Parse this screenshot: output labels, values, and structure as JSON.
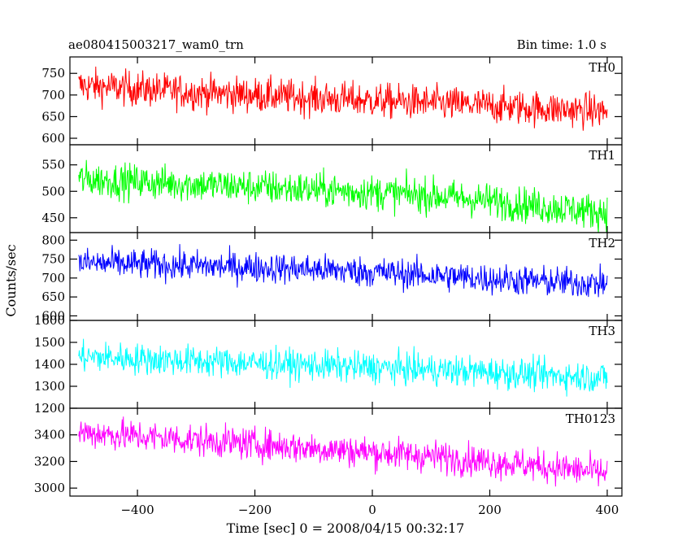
{
  "header": {
    "title": "ae080415003217_wam0_trn",
    "bin_time": "Bin time: 1.0 s"
  },
  "axes": {
    "xlabel": "Time [sec] 0 = 2008/04/15 00:32:17",
    "ylabel": "Counts/sec",
    "xlim": [
      -515,
      425
    ],
    "xticks": [
      -400,
      -200,
      0,
      200,
      400
    ]
  },
  "chart_data": {
    "type": "line",
    "title": "ae080415003217_wam0_trn",
    "subtitle": "Bin time: 1.0 s",
    "xlabel": "Time [sec] 0 = 2008/04/15 00:32:17",
    "ylabel": "Counts/sec",
    "x_range": [
      -500,
      400
    ],
    "bin_time_s": 1.0,
    "grid": false,
    "panels": [
      {
        "name": "TH0",
        "color": "#ff0000",
        "ylim": [
          585,
          788
        ],
        "yticks": [
          600,
          650,
          700,
          750
        ],
        "trend_x": [
          -500,
          -400,
          -300,
          -200,
          -100,
          0,
          100,
          200,
          300,
          400
        ],
        "trend_y": [
          722,
          714,
          706,
          700,
          693,
          687,
          681,
          675,
          668,
          662
        ],
        "noise_amplitude": 40
      },
      {
        "name": "TH1",
        "color": "#00ff00",
        "ylim": [
          422,
          588
        ],
        "yticks": [
          450,
          500,
          550
        ],
        "trend_x": [
          -500,
          -400,
          -300,
          -200,
          -100,
          0,
          100,
          200,
          300,
          400
        ],
        "trend_y": [
          523,
          518,
          513,
          508,
          503,
          498,
          492,
          482,
          470,
          460
        ],
        "noise_amplitude": 33
      },
      {
        "name": "TH2",
        "color": "#0000ff",
        "ylim": [
          588,
          820
        ],
        "yticks": [
          600,
          650,
          700,
          750,
          800
        ],
        "trend_x": [
          -500,
          -400,
          -300,
          -200,
          -100,
          0,
          100,
          200,
          300,
          400
        ],
        "trend_y": [
          740,
          736,
          732,
          728,
          723,
          716,
          707,
          698,
          690,
          685
        ],
        "noise_amplitude": 40
      },
      {
        "name": "TH3",
        "color": "#00ffff",
        "ylim": [
          1200,
          1600
        ],
        "yticks": [
          1200,
          1300,
          1400,
          1500,
          1600
        ],
        "trend_x": [
          -500,
          -400,
          -300,
          -200,
          -100,
          0,
          100,
          200,
          300,
          400
        ],
        "trend_y": [
          1435,
          1425,
          1415,
          1405,
          1395,
          1385,
          1375,
          1365,
          1350,
          1340
        ],
        "noise_amplitude": 70
      },
      {
        "name": "TH0123",
        "color": "#ff00ff",
        "ylim": [
          2940,
          3600
        ],
        "yticks": [
          3000,
          3200,
          3400
        ],
        "trend_x": [
          -500,
          -400,
          -300,
          -200,
          -100,
          0,
          100,
          200,
          300,
          400
        ],
        "trend_y": [
          3420,
          3390,
          3360,
          3330,
          3300,
          3270,
          3240,
          3200,
          3160,
          3110
        ],
        "noise_amplitude": 120
      }
    ]
  }
}
